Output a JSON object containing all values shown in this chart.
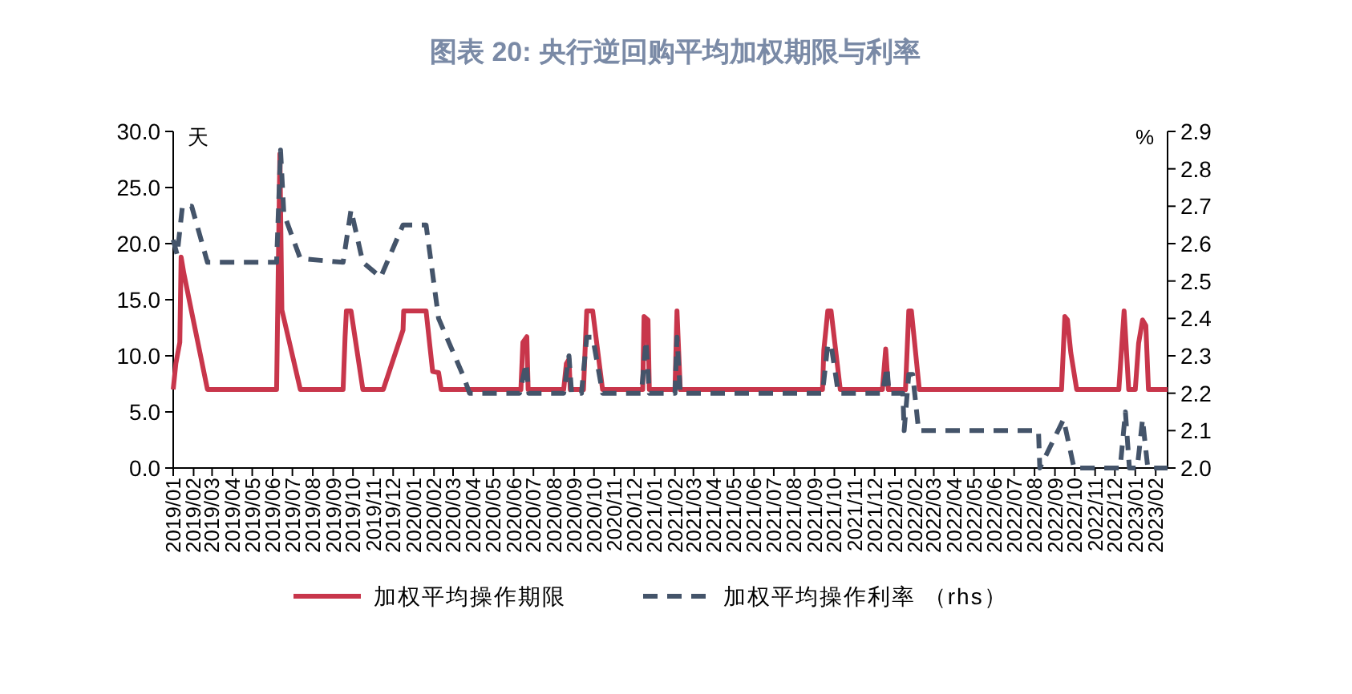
{
  "chart_data": {
    "type": "line",
    "title": "图表 20: 央行逆回购平均加权期限与利率",
    "ylabel": "天",
    "y2label": "%",
    "legend": "bottom",
    "xlim": [
      "2019-01-01",
      "2023-02-19"
    ],
    "xticks": [
      {
        "value": "2019-01",
        "label": "2019/01"
      },
      {
        "value": "2019-02",
        "label": "2019/02"
      },
      {
        "value": "2019-03",
        "label": "2019/03"
      },
      {
        "value": "2019-04",
        "label": "2019/04"
      },
      {
        "value": "2019-05",
        "label": "2019/05"
      },
      {
        "value": "2019-06",
        "label": "2019/06"
      },
      {
        "value": "2019-07",
        "label": "2019/07"
      },
      {
        "value": "2019-08",
        "label": "2019/08"
      },
      {
        "value": "2019-09",
        "label": "2019/09"
      },
      {
        "value": "2019-10",
        "label": "2019/10"
      },
      {
        "value": "2019-11",
        "label": "2019/11"
      },
      {
        "value": "2019-12",
        "label": "2019/12"
      },
      {
        "value": "2020-01",
        "label": "2020/01"
      },
      {
        "value": "2020-02",
        "label": "2020/02"
      },
      {
        "value": "2020-03",
        "label": "2020/03"
      },
      {
        "value": "2020-04",
        "label": "2020/04"
      },
      {
        "value": "2020-05",
        "label": "2020/05"
      },
      {
        "value": "2020-06",
        "label": "2020/06"
      },
      {
        "value": "2020-07",
        "label": "2020/07"
      },
      {
        "value": "2020-08",
        "label": "2020/08"
      },
      {
        "value": "2020-09",
        "label": "2020/09"
      },
      {
        "value": "2020-10",
        "label": "2020/10"
      },
      {
        "value": "2020-11",
        "label": "2020/11"
      },
      {
        "value": "2020-12",
        "label": "2020/12"
      },
      {
        "value": "2021-01",
        "label": "2021/01"
      },
      {
        "value": "2021-02",
        "label": "2021/02"
      },
      {
        "value": "2021-03",
        "label": "2021/03"
      },
      {
        "value": "2021-04",
        "label": "2021/04"
      },
      {
        "value": "2021-05",
        "label": "2021/05"
      },
      {
        "value": "2021-06",
        "label": "2021/06"
      },
      {
        "value": "2021-07",
        "label": "2021/07"
      },
      {
        "value": "2021-08",
        "label": "2021/08"
      },
      {
        "value": "2021-09",
        "label": "2021/09"
      },
      {
        "value": "2021-10",
        "label": "2021/10"
      },
      {
        "value": "2021-11",
        "label": "2021/11"
      },
      {
        "value": "2021-12",
        "label": "2021/12"
      },
      {
        "value": "2022-01",
        "label": "2022/01"
      },
      {
        "value": "2022-02",
        "label": "2022/02"
      },
      {
        "value": "2022-03",
        "label": "2022/03"
      },
      {
        "value": "2022-04",
        "label": "2022/04"
      },
      {
        "value": "2022-05",
        "label": "2022/05"
      },
      {
        "value": "2022-06",
        "label": "2022/06"
      },
      {
        "value": "2022-07",
        "label": "2022/07"
      },
      {
        "value": "2022-08",
        "label": "2022/08"
      },
      {
        "value": "2022-09",
        "label": "2022/09"
      },
      {
        "value": "2022-10",
        "label": "2022/10"
      },
      {
        "value": "2022-11",
        "label": "2022/11"
      },
      {
        "value": "2022-12",
        "label": "2022/12"
      },
      {
        "value": "2023-01",
        "label": "2023/01"
      },
      {
        "value": "2023-02",
        "label": "2023/02"
      }
    ],
    "ylim": [
      0,
      30
    ],
    "yticks": [
      {
        "value": 0,
        "label": "0.0"
      },
      {
        "value": 5,
        "label": "5.0"
      },
      {
        "value": 10,
        "label": "10.0"
      },
      {
        "value": 15,
        "label": "15.0"
      },
      {
        "value": 20,
        "label": "20.0"
      },
      {
        "value": 25,
        "label": "25.0"
      },
      {
        "value": 30,
        "label": "30.0"
      }
    ],
    "y2lim": [
      2.0,
      2.9
    ],
    "y2ticks": [
      {
        "value": 2.0,
        "label": "2.0"
      },
      {
        "value": 2.1,
        "label": "2.1"
      },
      {
        "value": 2.2,
        "label": "2.2"
      },
      {
        "value": 2.3,
        "label": "2.3"
      },
      {
        "value": 2.4,
        "label": "2.4"
      },
      {
        "value": 2.5,
        "label": "2.5"
      },
      {
        "value": 2.6,
        "label": "2.6"
      },
      {
        "value": 2.7,
        "label": "2.7"
      },
      {
        "value": 2.8,
        "label": "2.8"
      },
      {
        "value": 2.9,
        "label": "2.9"
      }
    ],
    "series": [
      {
        "name": "加权平均操作期限",
        "color": "#c8364b",
        "line_style": "solid",
        "x": [
          "2019-01-01",
          "2019-01-05",
          "2019-01-11",
          "2019-01-13",
          "2019-01-17",
          "2019-01-29",
          "2019-02-22",
          "2019-06-07",
          "2019-06-12",
          "2019-06-15",
          "2019-07-13",
          "2019-09-16",
          "2019-09-19",
          "2019-09-21",
          "2019-09-28",
          "2019-10-16",
          "2019-11-16",
          "2019-12-16",
          "2019-12-17",
          "2020-01-20",
          "2020-01-30",
          "2020-02-08",
          "2020-02-12",
          "2020-06-12",
          "2020-06-15",
          "2020-06-21",
          "2020-06-23",
          "2020-08-16",
          "2020-08-20",
          "2020-08-24",
          "2020-08-26",
          "2020-09-15",
          "2020-09-20",
          "2020-09-29",
          "2020-10-14",
          "2020-12-14",
          "2020-12-16",
          "2020-12-22",
          "2020-12-24",
          "2021-02-01",
          "2021-02-04",
          "2021-02-09",
          "2021-09-13",
          "2021-09-15",
          "2021-09-21",
          "2021-09-26",
          "2021-10-10",
          "2021-12-13",
          "2021-12-18",
          "2021-12-22",
          "2022-01-17",
          "2022-01-22",
          "2022-01-26",
          "2022-02-07",
          "2022-09-11",
          "2022-09-16",
          "2022-09-20",
          "2022-09-25",
          "2022-10-04",
          "2022-12-07",
          "2022-12-15",
          "2022-12-22",
          "2023-01-01",
          "2023-01-06",
          "2023-01-12",
          "2023-01-17",
          "2023-01-21",
          "2023-02-19"
        ],
        "values": [
          7,
          9.3,
          11.2,
          18.8,
          17.4,
          13.9,
          7,
          7,
          28,
          14.1,
          7,
          7,
          11.7,
          14,
          14,
          7,
          7,
          12.3,
          14,
          14,
          8.6,
          8.5,
          7,
          7,
          11.2,
          11.7,
          7,
          7,
          9.3,
          9.7,
          7,
          7,
          14,
          14,
          7,
          7,
          13.5,
          13.2,
          7,
          7,
          14,
          7,
          7,
          10.5,
          14,
          14,
          7,
          7,
          10.6,
          7,
          7,
          14,
          14,
          7,
          7,
          13.5,
          13.2,
          10.3,
          7,
          7,
          14,
          7,
          7,
          11.1,
          13.2,
          12.7,
          7,
          7
        ]
      },
      {
        "name": "加权平均操作利率 （rhs）",
        "color": "#44546a",
        "line_style": "dashed",
        "axis": "y2",
        "x": [
          "2019-01-01",
          "2019-01-07",
          "2019-01-15",
          "2019-01-29",
          "2019-02-22",
          "2019-06-07",
          "2019-06-13",
          "2019-06-18",
          "2019-07-13",
          "2019-09-16",
          "2019-09-28",
          "2019-10-16",
          "2019-11-12",
          "2019-12-16",
          "2020-01-20",
          "2020-02-08",
          "2020-03-18",
          "2020-03-26",
          "2020-06-10",
          "2020-06-20",
          "2020-06-24",
          "2020-08-16",
          "2020-08-24",
          "2020-08-28",
          "2020-09-12",
          "2020-09-20",
          "2020-09-29",
          "2020-10-14",
          "2020-12-12",
          "2020-12-19",
          "2020-12-24",
          "2021-02-01",
          "2021-02-04",
          "2021-02-09",
          "2021-09-13",
          "2021-09-21",
          "2021-09-26",
          "2021-10-07",
          "2021-12-13",
          "2021-12-20",
          "2021-12-23",
          "2022-01-13",
          "2022-01-15",
          "2022-01-22",
          "2022-01-28",
          "2022-02-06",
          "2022-08-07",
          "2022-08-09",
          "2022-09-14",
          "2022-09-30",
          "2022-12-09",
          "2022-12-17",
          "2022-12-23",
          "2023-01-04",
          "2023-01-12",
          "2023-01-20",
          "2023-02-19"
        ],
        "values": [
          2.61,
          2.57,
          2.7,
          2.7,
          2.55,
          2.55,
          2.85,
          2.68,
          2.56,
          2.55,
          2.69,
          2.55,
          2.51,
          2.65,
          2.65,
          2.4,
          2.24,
          2.2,
          2.2,
          2.28,
          2.2,
          2.2,
          2.3,
          2.2,
          2.2,
          2.35,
          2.35,
          2.2,
          2.2,
          2.34,
          2.2,
          2.2,
          2.35,
          2.2,
          2.2,
          2.33,
          2.33,
          2.2,
          2.2,
          2.27,
          2.2,
          2.2,
          2.1,
          2.25,
          2.25,
          2.1,
          2.1,
          2.0,
          2.13,
          2.0,
          2.0,
          2.15,
          2.0,
          2.0,
          2.13,
          2.0,
          2.0
        ]
      }
    ]
  }
}
